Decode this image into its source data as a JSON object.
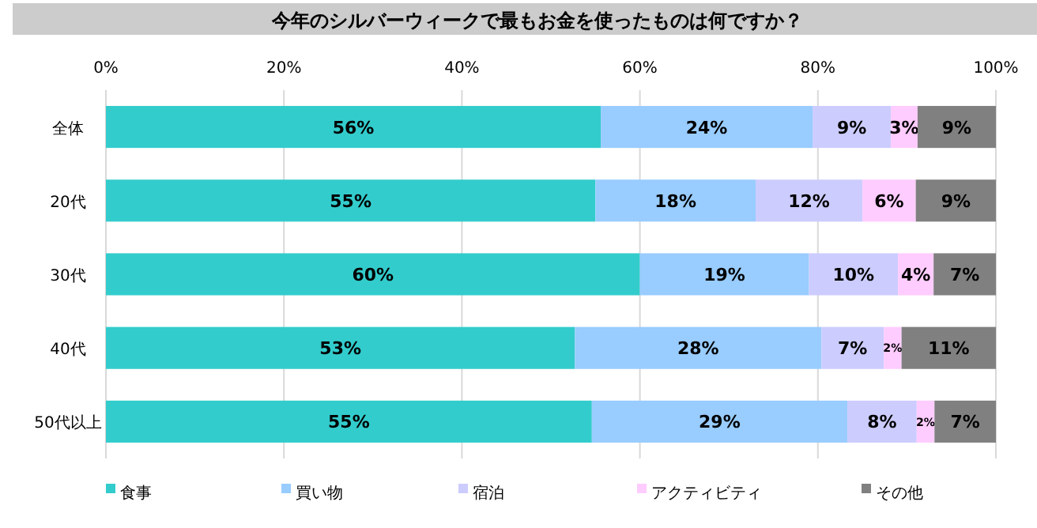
{
  "chart_data": {
    "type": "bar",
    "orientation": "horizontal",
    "stacked": true,
    "title": "今年のシルバーウィークで最もお金を使ったものは何ですか？",
    "categories": [
      "全体",
      "20代",
      "30代",
      "40代",
      "50代以上"
    ],
    "series": [
      {
        "name": "食事",
        "color": "#33cccc",
        "values": [
          55.6,
          55,
          60,
          52.7,
          54.6
        ],
        "value_labels": [
          "56%",
          "55%",
          "60%",
          "53%",
          "55%"
        ]
      },
      {
        "name": "買い物",
        "color": "#99ccff",
        "values": [
          23.8,
          18,
          19,
          27.7,
          28.7
        ],
        "value_labels": [
          "24%",
          "18%",
          "19%",
          "28%",
          "29%"
        ]
      },
      {
        "name": "宿泊",
        "color": "#ccccff",
        "values": [
          8.8,
          12,
          10,
          7,
          7.8
        ],
        "value_labels": [
          "9%",
          "12%",
          "10%",
          "7%",
          "8%"
        ]
      },
      {
        "name": "アクティビティ",
        "color": "#ffccff",
        "values": [
          3,
          6,
          4,
          2,
          2
        ],
        "value_labels": [
          "3%",
          "6%",
          "4%",
          "2%",
          "2%"
        ]
      },
      {
        "name": "その他",
        "color": "#808080",
        "values": [
          8.8,
          9,
          7,
          10.6,
          6.9
        ],
        "value_labels": [
          "9%",
          "9%",
          "7%",
          "11%",
          "7%"
        ]
      }
    ],
    "xlim": [
      0,
      100
    ],
    "xticks": [
      {
        "value": 0,
        "label": "0%"
      },
      {
        "value": 20,
        "label": "20%"
      },
      {
        "value": 40,
        "label": "40%"
      },
      {
        "value": 60,
        "label": "60%"
      },
      {
        "value": 80,
        "label": "80%"
      },
      {
        "value": 100,
        "label": "100%"
      }
    ],
    "grid": "x",
    "legend": "bottom"
  }
}
